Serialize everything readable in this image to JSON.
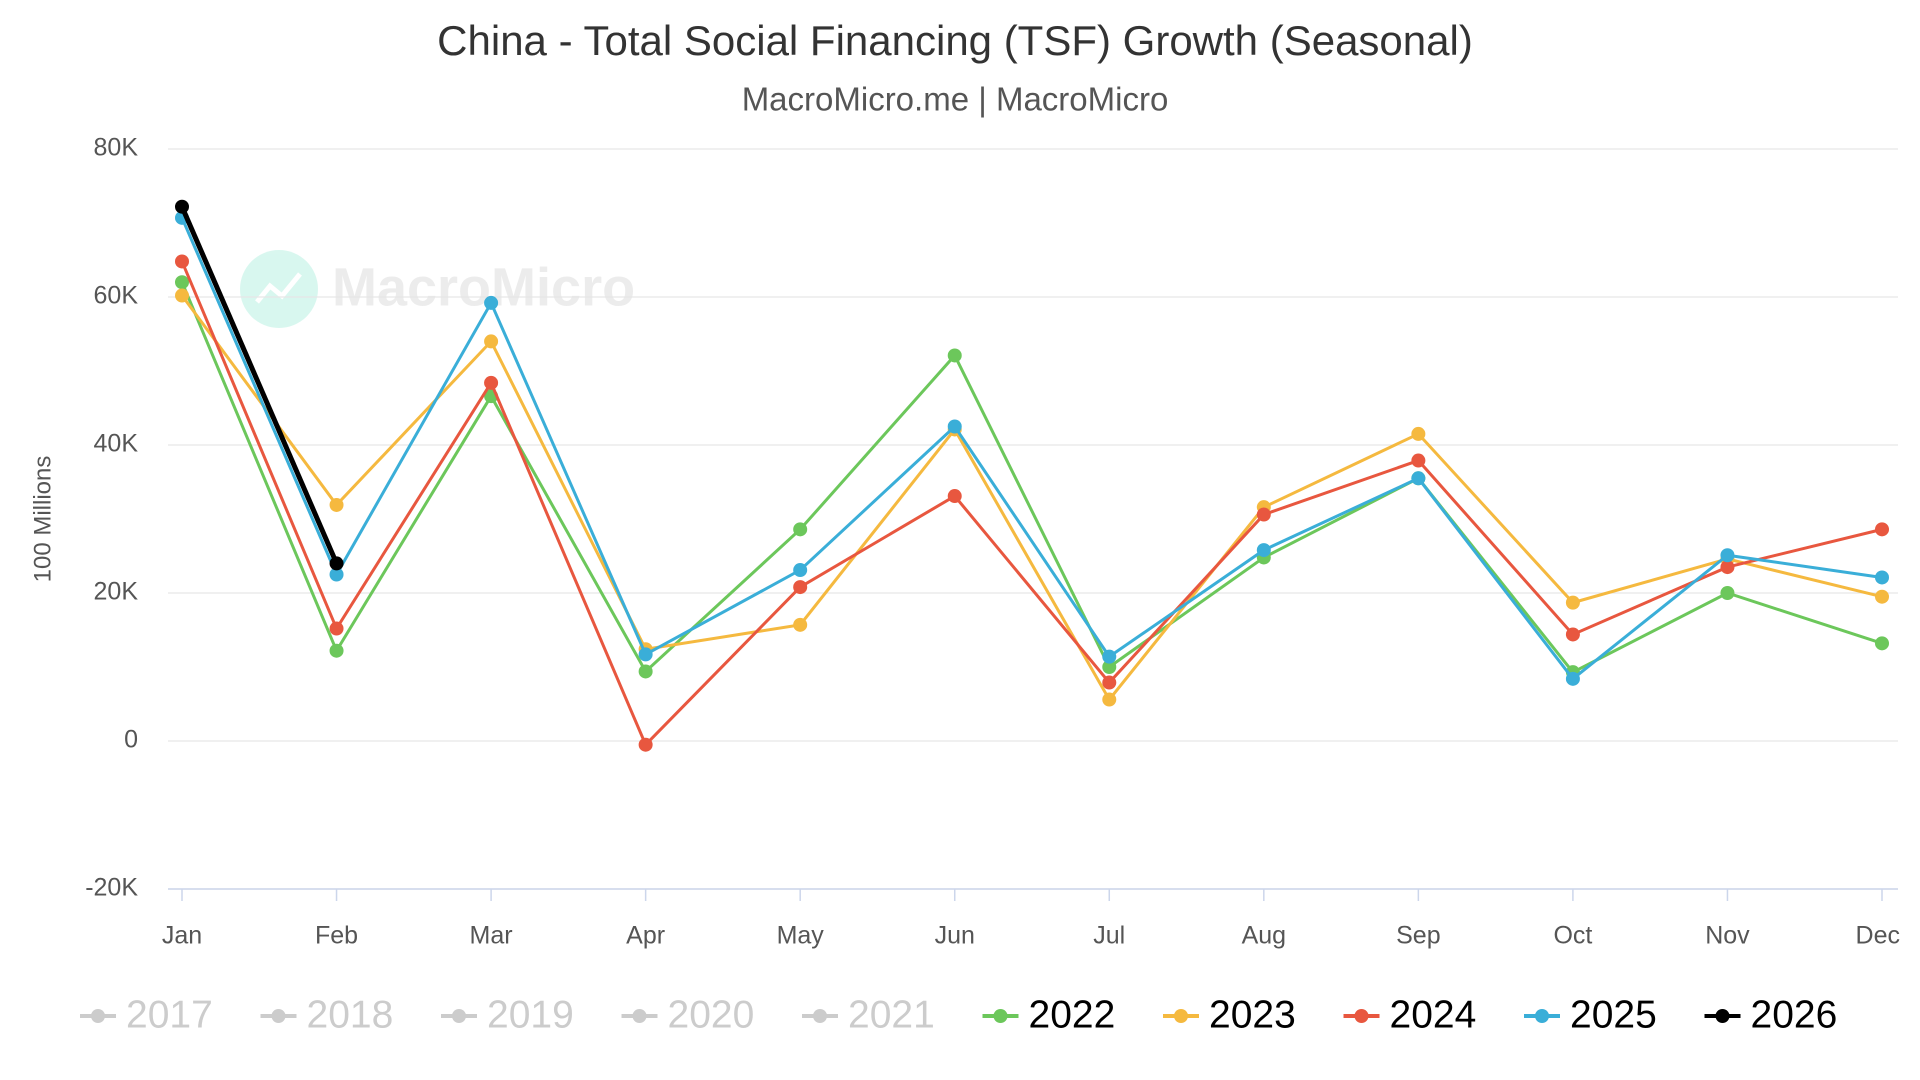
{
  "chart_data": {
    "type": "line",
    "title": "China - Total Social Financing (TSF) Growth (Seasonal)",
    "subtitle": "MacroMicro.me | MacroMicro",
    "watermark": "MacroMicro",
    "y_label": "100 Millions",
    "categories": [
      "Jan",
      "Feb",
      "Mar",
      "Apr",
      "May",
      "Jun",
      "Jul",
      "Aug",
      "Sep",
      "Oct",
      "Nov",
      "Dec"
    ],
    "ylim": [
      -20000,
      80000
    ],
    "yticks": [
      {
        "value": -20000,
        "label": "-20K"
      },
      0,
      {
        "value": 20000,
        "label": "20K"
      },
      {
        "value": 40000,
        "label": "40K"
      },
      {
        "value": 60000,
        "label": "60K"
      },
      {
        "value": 80000,
        "label": "80K"
      }
    ],
    "grid": true,
    "legend": "bottom",
    "series": [
      {
        "name": "2017",
        "color": "#cccccc",
        "visible": false,
        "values": [
          null,
          null,
          null,
          null,
          null,
          null,
          null,
          null,
          null,
          null,
          null,
          null
        ]
      },
      {
        "name": "2018",
        "color": "#cccccc",
        "visible": false,
        "values": [
          null,
          null,
          null,
          null,
          null,
          null,
          null,
          null,
          null,
          null,
          null,
          null
        ]
      },
      {
        "name": "2019",
        "color": "#cccccc",
        "visible": false,
        "values": [
          null,
          null,
          null,
          null,
          null,
          null,
          null,
          null,
          null,
          null,
          null,
          null
        ]
      },
      {
        "name": "2020",
        "color": "#cccccc",
        "visible": false,
        "values": [
          null,
          null,
          null,
          null,
          null,
          null,
          null,
          null,
          null,
          null,
          null,
          null
        ]
      },
      {
        "name": "2021",
        "color": "#cccccc",
        "visible": false,
        "values": [
          null,
          null,
          null,
          null,
          null,
          null,
          null,
          null,
          null,
          null,
          null,
          null
        ]
      },
      {
        "name": "2022",
        "color": "#6cc75b",
        "visible": true,
        "values": [
          62000,
          12200,
          46600,
          9400,
          28600,
          52100,
          10000,
          24800,
          35500,
          9300,
          20000,
          13200
        ]
      },
      {
        "name": "2023",
        "color": "#f5b93f",
        "visible": true,
        "values": [
          60200,
          31900,
          54000,
          12400,
          15700,
          42100,
          5600,
          31600,
          41500,
          18700,
          24600,
          19500
        ]
      },
      {
        "name": "2024",
        "color": "#e8573f",
        "visible": true,
        "values": [
          64800,
          15200,
          48400,
          -500,
          20800,
          33100,
          7900,
          30600,
          37900,
          14400,
          23500,
          28600
        ]
      },
      {
        "name": "2025",
        "color": "#3aaed8",
        "visible": true,
        "values": [
          70700,
          22500,
          59200,
          11700,
          23100,
          42500,
          11400,
          25800,
          35500,
          8400,
          25100,
          22100
        ]
      },
      {
        "name": "2026",
        "color": "#000000",
        "visible": true,
        "values": [
          72200,
          24000,
          null,
          null,
          null,
          null,
          null,
          null,
          null,
          null,
          null,
          null
        ]
      }
    ]
  }
}
